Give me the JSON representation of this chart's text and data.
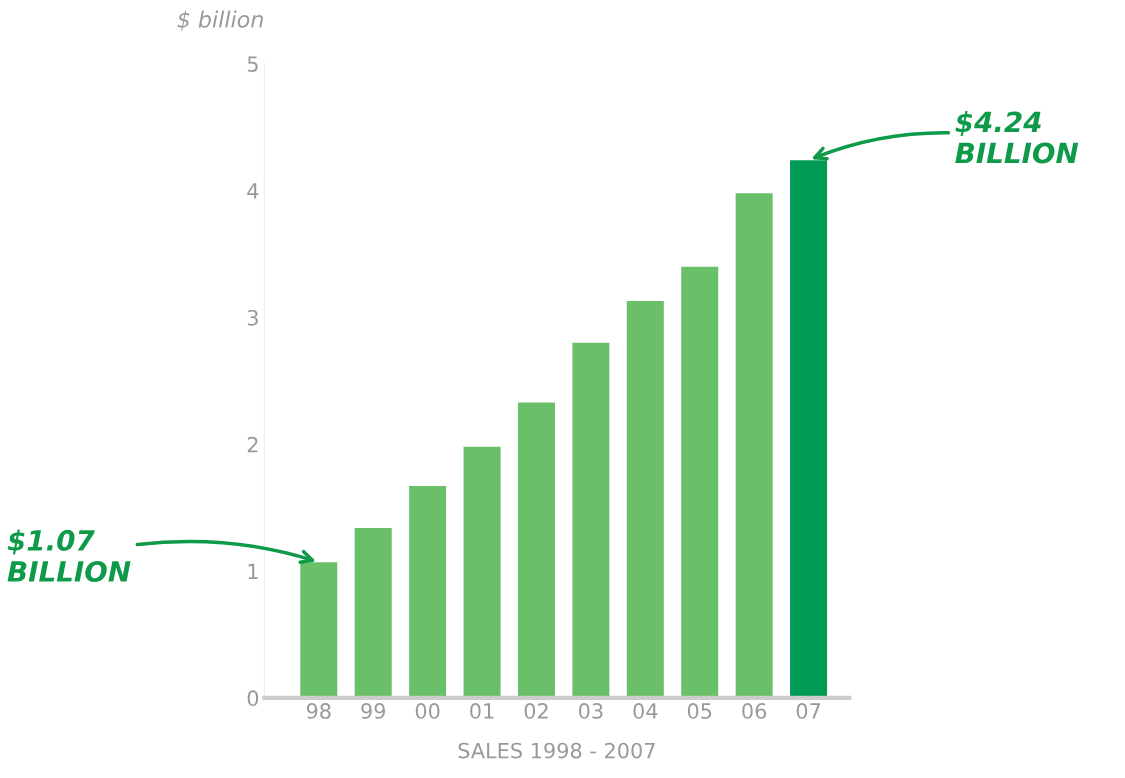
{
  "chart_data": {
    "type": "bar",
    "categories": [
      "98",
      "99",
      "00",
      "01",
      "02",
      "03",
      "04",
      "05",
      "06",
      "07"
    ],
    "values": [
      1.07,
      1.34,
      1.67,
      1.98,
      2.33,
      2.8,
      3.13,
      3.4,
      3.98,
      4.24
    ],
    "colors": [
      "#6abf69",
      "#6abf69",
      "#6abf69",
      "#6abf69",
      "#6abf69",
      "#6abf69",
      "#6abf69",
      "#6abf69",
      "#6abf69",
      "#009b55"
    ],
    "ylabel": "$ billion",
    "xlabel": "SALES 1998 - 2007",
    "ylim": [
      0,
      5
    ],
    "yticks": [
      0,
      1,
      2,
      3,
      4,
      5
    ],
    "grid": false,
    "annotations": [
      {
        "text": "$1.07\nBILLION",
        "x": "98",
        "y": 1.07
      },
      {
        "text": "$4.24\nBILLION",
        "x": "07",
        "y": 4.24
      }
    ]
  }
}
